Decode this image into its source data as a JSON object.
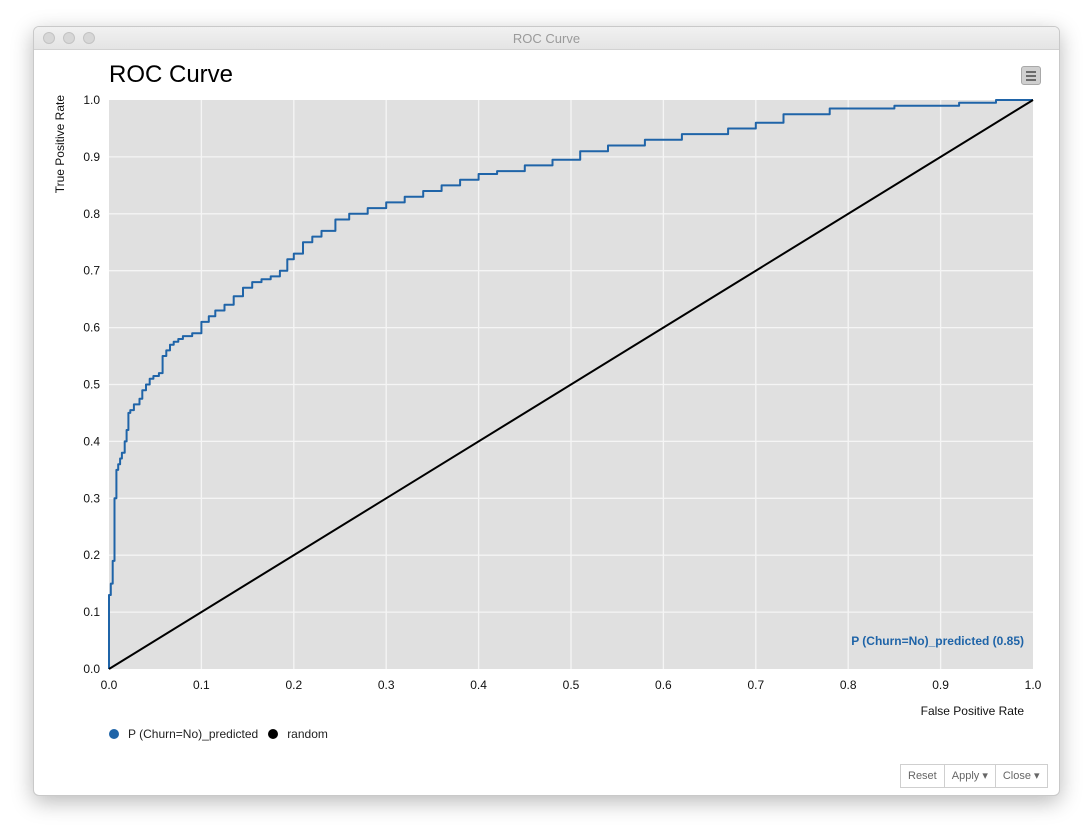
{
  "window": {
    "title": "ROC Curve"
  },
  "menu_icon": "hamburger-menu-icon",
  "buttons": {
    "reset": "Reset",
    "apply": "Apply ▾",
    "close": "Close ▾"
  },
  "colors": {
    "series": "#1f64a8",
    "random": "#000000",
    "plot_bg": "#e0e0e0",
    "grid": "#f5f5f5"
  },
  "chart_data": {
    "type": "line",
    "title": "ROC Curve",
    "xlabel": "False Positive Rate",
    "ylabel": "True Positive Rate",
    "xlim": [
      0,
      1
    ],
    "ylim": [
      0,
      1
    ],
    "x_ticks": [
      "0.0",
      "0.1",
      "0.2",
      "0.3",
      "0.4",
      "0.5",
      "0.6",
      "0.7",
      "0.8",
      "0.9",
      "1.0"
    ],
    "y_ticks": [
      "0.0",
      "0.1",
      "0.2",
      "0.3",
      "0.4",
      "0.5",
      "0.6",
      "0.7",
      "0.8",
      "0.9",
      "1.0"
    ],
    "grid": true,
    "legend_position": "bottom-left",
    "annotation": "P (Churn=No)_predicted (0.85)",
    "series": [
      {
        "name": "P (Churn=No)_predicted",
        "color": "#1f64a8",
        "x": [
          0,
          0,
          0.002,
          0.002,
          0.004,
          0.004,
          0.006,
          0.006,
          0.008,
          0.008,
          0.01,
          0.01,
          0.012,
          0.012,
          0.014,
          0.014,
          0.017,
          0.017,
          0.019,
          0.019,
          0.021,
          0.021,
          0.023,
          0.023,
          0.027,
          0.027,
          0.033,
          0.033,
          0.036,
          0.036,
          0.04,
          0.04,
          0.044,
          0.044,
          0.048,
          0.048,
          0.054,
          0.054,
          0.058,
          0.058,
          0.062,
          0.062,
          0.066,
          0.066,
          0.07,
          0.07,
          0.075,
          0.075,
          0.08,
          0.08,
          0.09,
          0.09,
          0.1,
          0.1,
          0.108,
          0.108,
          0.115,
          0.115,
          0.125,
          0.125,
          0.135,
          0.135,
          0.145,
          0.145,
          0.155,
          0.155,
          0.165,
          0.165,
          0.175,
          0.175,
          0.185,
          0.185,
          0.193,
          0.193,
          0.2,
          0.2,
          0.21,
          0.21,
          0.22,
          0.22,
          0.23,
          0.23,
          0.245,
          0.245,
          0.26,
          0.26,
          0.28,
          0.28,
          0.3,
          0.3,
          0.32,
          0.32,
          0.34,
          0.34,
          0.36,
          0.36,
          0.38,
          0.38,
          0.4,
          0.4,
          0.42,
          0.42,
          0.45,
          0.45,
          0.48,
          0.48,
          0.51,
          0.51,
          0.54,
          0.54,
          0.58,
          0.58,
          0.62,
          0.62,
          0.67,
          0.67,
          0.7,
          0.7,
          0.73,
          0.73,
          0.78,
          0.78,
          0.85,
          0.85,
          0.92,
          0.92,
          0.96,
          0.96,
          1.0
        ],
        "y": [
          0,
          0.13,
          0.13,
          0.15,
          0.15,
          0.19,
          0.19,
          0.3,
          0.3,
          0.35,
          0.35,
          0.36,
          0.36,
          0.37,
          0.37,
          0.38,
          0.38,
          0.4,
          0.4,
          0.42,
          0.42,
          0.45,
          0.45,
          0.455,
          0.455,
          0.465,
          0.465,
          0.475,
          0.475,
          0.49,
          0.49,
          0.5,
          0.5,
          0.51,
          0.51,
          0.515,
          0.515,
          0.52,
          0.52,
          0.55,
          0.55,
          0.56,
          0.56,
          0.57,
          0.57,
          0.575,
          0.575,
          0.58,
          0.58,
          0.585,
          0.585,
          0.59,
          0.59,
          0.61,
          0.61,
          0.62,
          0.62,
          0.63,
          0.63,
          0.64,
          0.64,
          0.655,
          0.655,
          0.67,
          0.67,
          0.68,
          0.68,
          0.685,
          0.685,
          0.69,
          0.69,
          0.7,
          0.7,
          0.72,
          0.72,
          0.73,
          0.73,
          0.75,
          0.75,
          0.76,
          0.76,
          0.77,
          0.77,
          0.79,
          0.79,
          0.8,
          0.8,
          0.81,
          0.81,
          0.82,
          0.82,
          0.83,
          0.83,
          0.84,
          0.84,
          0.85,
          0.85,
          0.86,
          0.86,
          0.87,
          0.87,
          0.875,
          0.875,
          0.885,
          0.885,
          0.895,
          0.895,
          0.91,
          0.91,
          0.92,
          0.92,
          0.93,
          0.93,
          0.94,
          0.94,
          0.95,
          0.95,
          0.96,
          0.96,
          0.975,
          0.975,
          0.985,
          0.985,
          0.99,
          0.99,
          0.995,
          0.995,
          1.0,
          1.0
        ]
      },
      {
        "name": "random",
        "color": "#000000",
        "x": [
          0,
          1
        ],
        "y": [
          0,
          1
        ]
      }
    ]
  }
}
